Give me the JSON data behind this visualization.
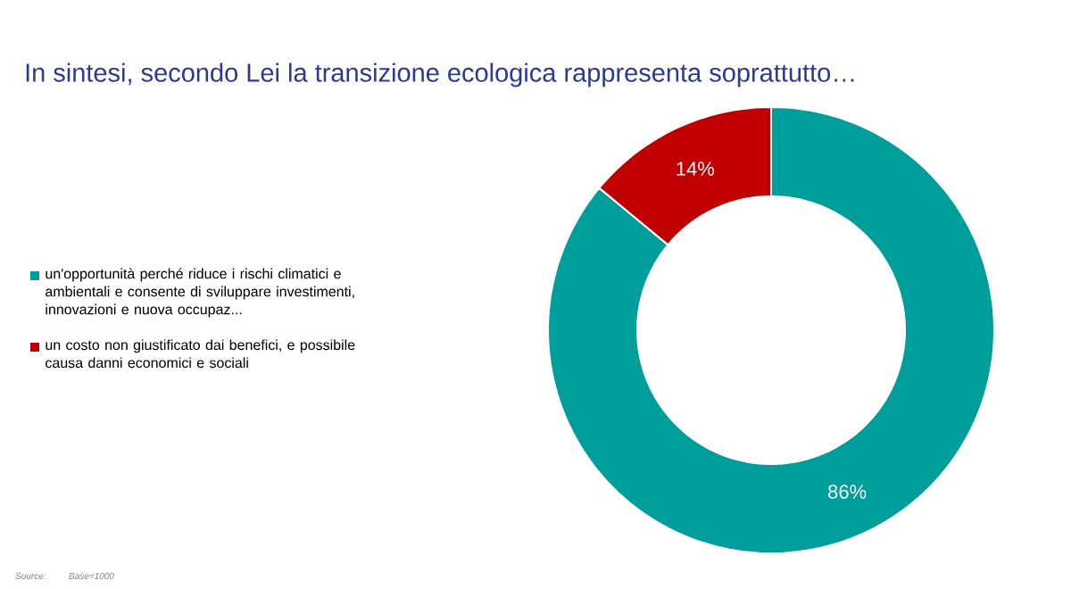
{
  "chart_data": {
    "type": "donut",
    "title": "In sintesi, secondo Lei la transizione ecologica rappresenta soprattutto…",
    "categories": [
      "un'opportunità perché riduce i rischi climatici e ambientali e consente di sviluppare investimenti, innovazioni e nuova occupaz...",
      "un costo non giustificato dai benefici, e possibile causa danni economici e sociali"
    ],
    "values": [
      86,
      14
    ],
    "colors": [
      "#009e9a",
      "#c00000"
    ],
    "value_labels": [
      "86%",
      "14%"
    ],
    "legend": "left",
    "annotations": [
      "Source:",
      "Base=1000"
    ]
  }
}
